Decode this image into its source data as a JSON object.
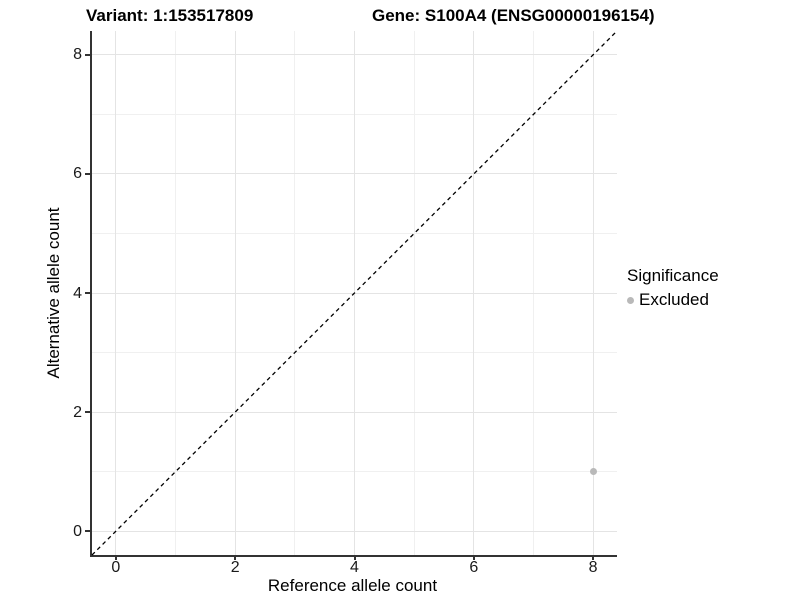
{
  "chart_data": {
    "type": "scatter",
    "titles": {
      "variant": "Variant: 1:153517809",
      "gene": "Gene: S100A4 (ENSG00000196154)"
    },
    "xlabel": "Reference allele count",
    "ylabel": "Alternative allele count",
    "xlim": [
      -0.4,
      8.4
    ],
    "ylim": [
      -0.4,
      8.4
    ],
    "major_ticks": [
      0,
      2,
      4,
      6,
      8
    ],
    "minor_ticks": [
      1,
      3,
      5,
      7
    ],
    "grid": "major+minor",
    "points": [
      {
        "x": 8,
        "y": 1,
        "series": "Excluded"
      }
    ],
    "identity_line": {
      "slope": 1,
      "intercept": 0,
      "style": "dashed"
    },
    "legend": {
      "title": "Significance",
      "position": "right",
      "items": [
        {
          "label": "Excluded",
          "color": "#b9b9b9",
          "marker": "circle"
        }
      ]
    },
    "colors": {
      "point": "#b9b9b9",
      "grid_major": "#e4e4e4",
      "grid_minor": "#f0f0f0",
      "axis_line": "#333333",
      "identity_line": "#000000"
    }
  }
}
